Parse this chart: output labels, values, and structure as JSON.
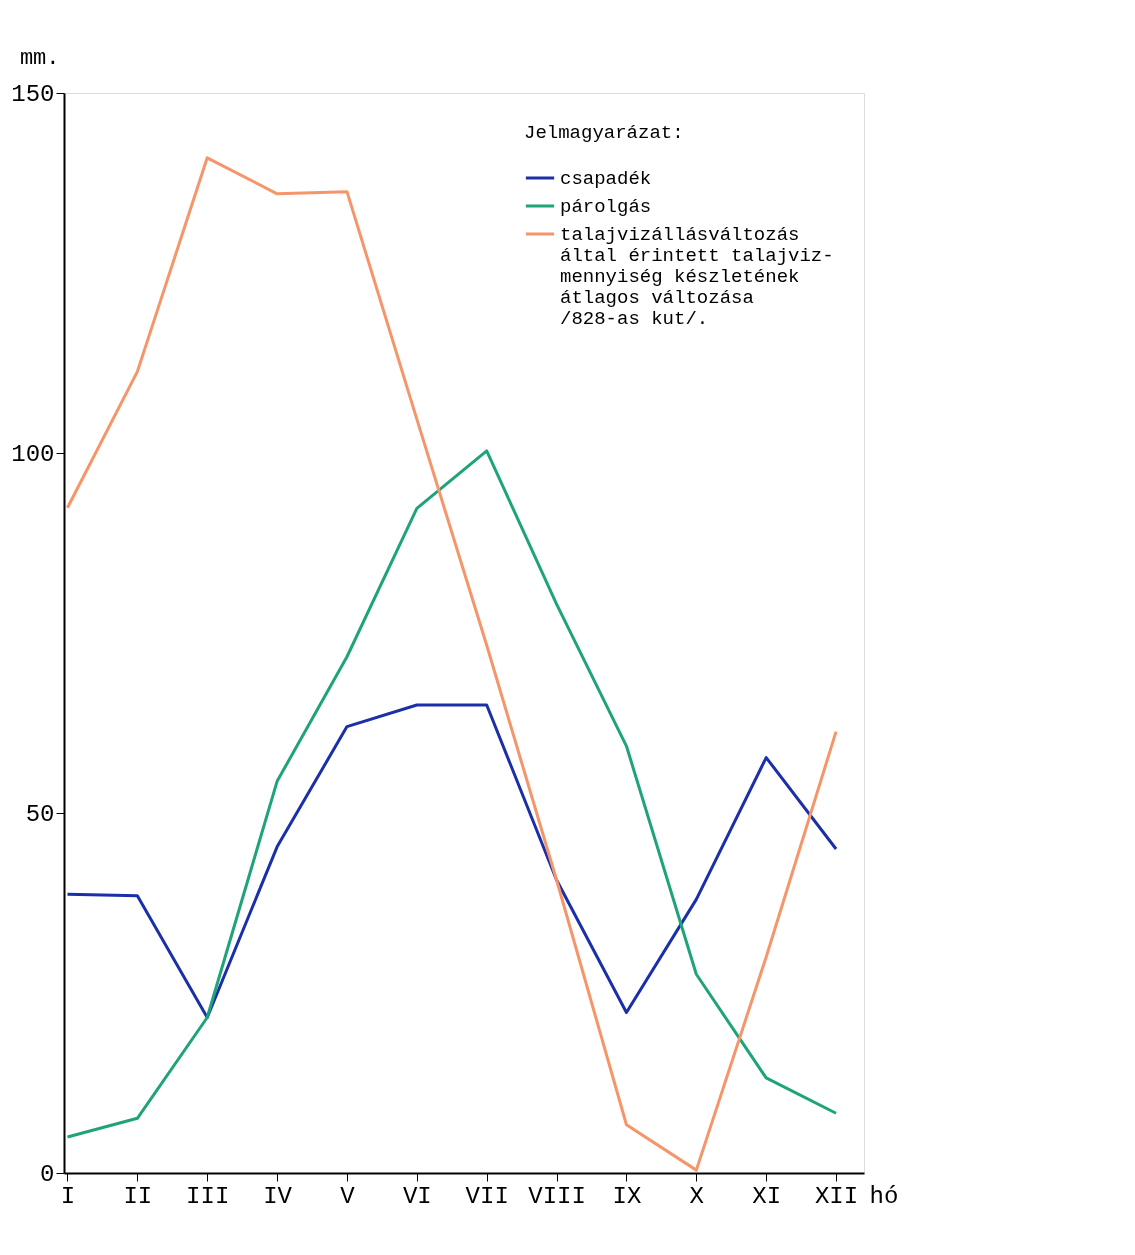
{
  "chart_data": {
    "type": "line",
    "xlabel": "hó",
    "ylabel": "mm.",
    "legend_title": "Jelmagyarázat:",
    "categories": [
      "I",
      "II",
      "III",
      "IV",
      "V",
      "VI",
      "VII",
      "VIII",
      "IX",
      "X",
      "XI",
      "XII"
    ],
    "series": [
      {
        "name": "csapadék",
        "color": "#1a2fa8",
        "values": [
          38.7,
          38.5,
          21.6,
          45.3,
          62,
          65,
          65,
          40.7,
          22.3,
          38,
          57.7,
          45
        ]
      },
      {
        "name": "párolgás",
        "color": "#1fa37a",
        "values": [
          5,
          7.6,
          21.6,
          54.4,
          71.7,
          92.3,
          100.3,
          79,
          59.3,
          27.6,
          13.2,
          8.3
        ]
      },
      {
        "name": "talajvizállásváltozás\náltal érintett talajviz-\nmennyiség készletének\nátlagos változása\n  /828-as kut/.",
        "color": "#f5956a",
        "values": [
          92.4,
          111.3,
          141,
          136,
          136.3,
          104.7,
          73.3,
          40.7,
          6.7,
          0.4,
          30,
          61.3
        ]
      }
    ],
    "ylim": [
      0,
      150
    ],
    "yticks": [
      0,
      50,
      100,
      150
    ],
    "grid": false,
    "legend": "top right",
    "marker": "none",
    "line_style": "solid"
  }
}
